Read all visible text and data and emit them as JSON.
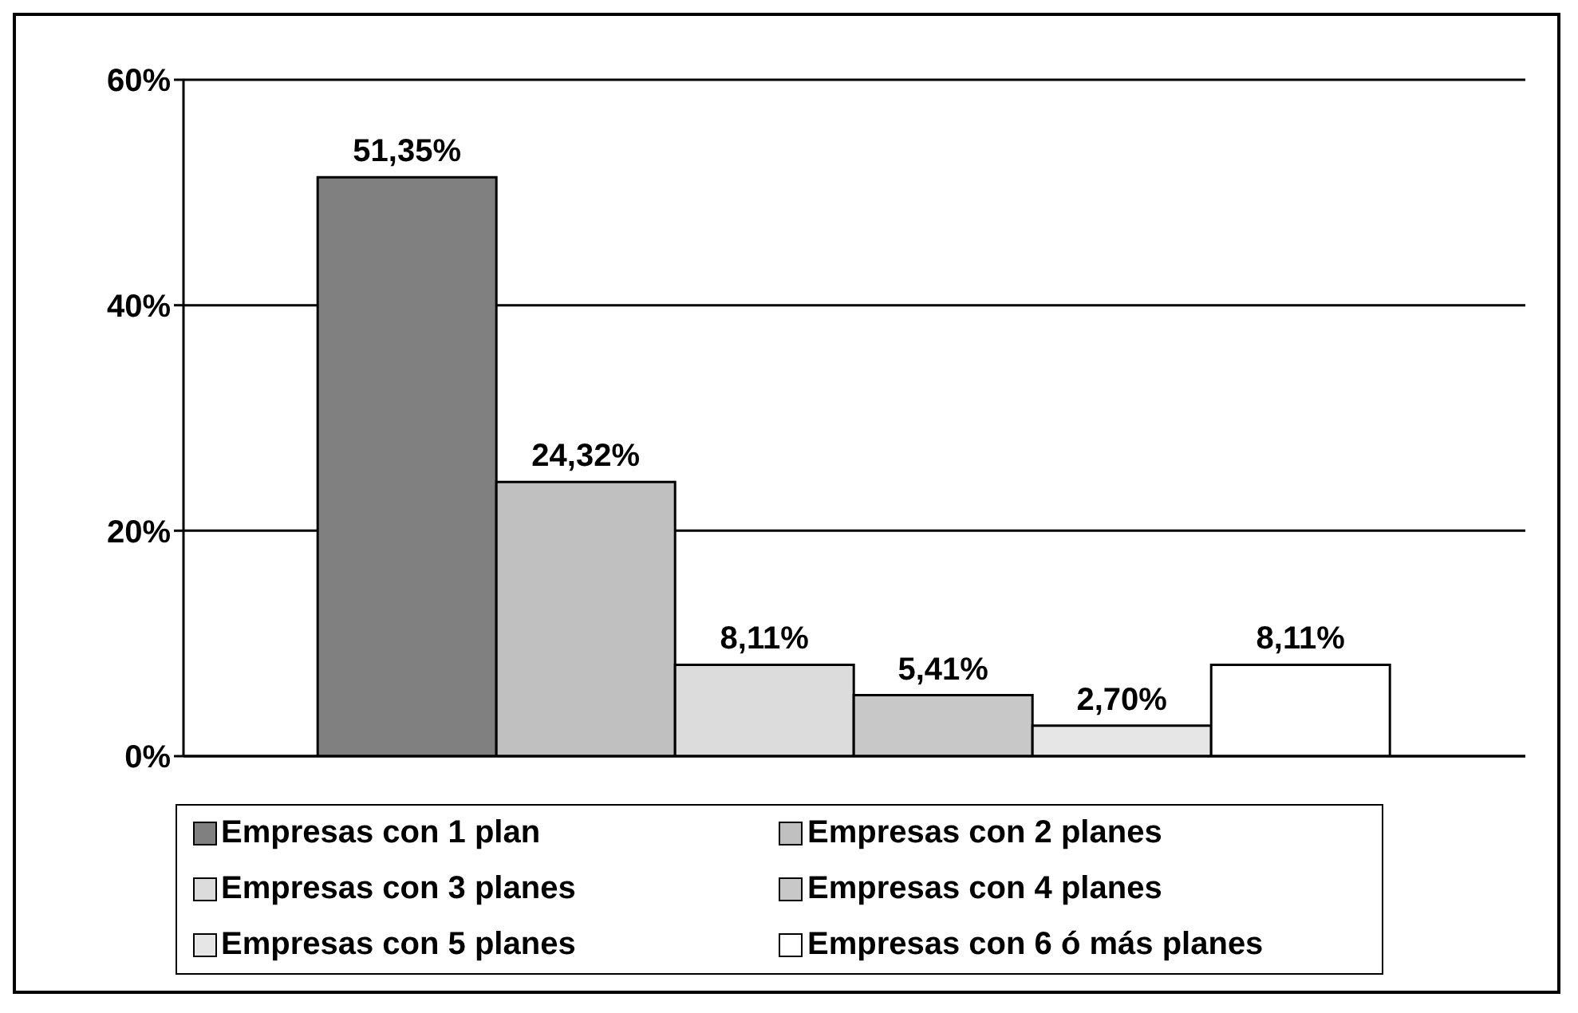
{
  "chart_data": {
    "type": "bar",
    "categories": [
      null
    ],
    "series": [
      {
        "name": "Empresas con 1 plan",
        "color": "#808080",
        "values": [
          51.35
        ],
        "value_labels": [
          "51,35%"
        ]
      },
      {
        "name": "Empresas con 2 planes",
        "color": "#c0c0c0",
        "values": [
          24.32
        ],
        "value_labels": [
          "24,32%"
        ]
      },
      {
        "name": "Empresas con 3 planes",
        "color": "#dcdcdc",
        "values": [
          8.11
        ],
        "value_labels": [
          "8,11%"
        ]
      },
      {
        "name": "Empresas con 4 planes",
        "color": "#c8c8c8",
        "values": [
          5.41
        ],
        "value_labels": [
          "5,41%"
        ]
      },
      {
        "name": "Empresas con 5 planes",
        "color": "#e6e6e6",
        "values": [
          2.7
        ],
        "value_labels": [
          "2,70%"
        ]
      },
      {
        "name": "Empresas con 6 ó más planes",
        "color": "#ffffff",
        "values": [
          8.11
        ],
        "value_labels": [
          "8,11%"
        ]
      }
    ],
    "ylim": [
      0,
      60
    ],
    "yticks": [
      {
        "value": 0,
        "label": "0%"
      },
      {
        "value": 20,
        "label": "20%"
      },
      {
        "value": 40,
        "label": "40%"
      },
      {
        "value": 60,
        "label": "60%"
      }
    ],
    "grid": "y",
    "legend": "bottom"
  }
}
